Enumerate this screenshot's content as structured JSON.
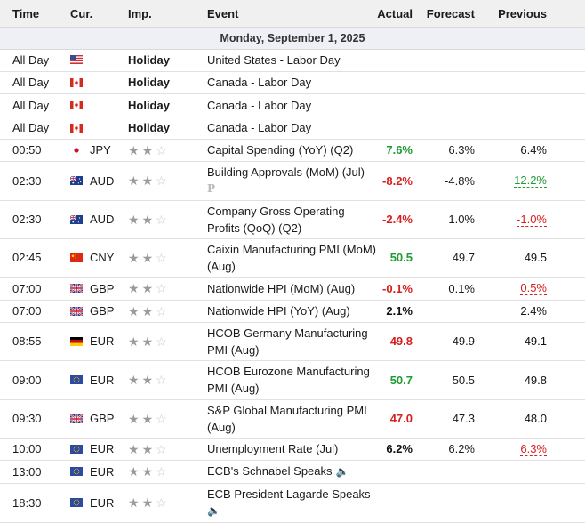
{
  "header": {
    "time": "Time",
    "currency": "Cur.",
    "importance": "Imp.",
    "event": "Event",
    "actual": "Actual",
    "forecast": "Forecast",
    "previous": "Previous"
  },
  "date_label": "Monday, September 1, 2025",
  "colors": {
    "positive": "#1f9c34",
    "negative": "#d62020",
    "header_bg": "#f0f0f0"
  },
  "rows": [
    {
      "time": "All Day",
      "flag": "us-flag",
      "currency": "",
      "holiday": "Holiday",
      "event": "United States - Labor Day"
    },
    {
      "time": "All Day",
      "flag": "ca-flag",
      "currency": "",
      "holiday": "Holiday",
      "event": "Canada - Labor Day"
    },
    {
      "time": "All Day",
      "flag": "ca-flag",
      "currency": "",
      "holiday": "Holiday",
      "event": "Canada - Labor Day"
    },
    {
      "time": "All Day",
      "flag": "ca-flag",
      "currency": "",
      "holiday": "Holiday",
      "event": "Canada - Labor Day"
    },
    {
      "time": "00:50",
      "flag": "jp-flag",
      "currency": "JPY",
      "stars": 2,
      "event": "Capital Spending (YoY) (Q2)",
      "actual": "7.6%",
      "actual_color": "green",
      "forecast": "6.3%",
      "previous": "6.4%",
      "previous_color": "black"
    },
    {
      "time": "02:30",
      "flag": "au-flag",
      "currency": "AUD",
      "stars": 2,
      "event": "Building Approvals (MoM) (Jul)",
      "event_icon": "P",
      "actual": "-8.2%",
      "actual_color": "red",
      "forecast": "-4.8%",
      "previous": "12.2%",
      "previous_color": "green",
      "previous_revised": true
    },
    {
      "time": "02:30",
      "flag": "au-flag",
      "currency": "AUD",
      "stars": 2,
      "event": "Company Gross Operating Profits (QoQ) (Q2)",
      "actual": "-2.4%",
      "actual_color": "red",
      "forecast": "1.0%",
      "previous": "-1.0%",
      "previous_color": "red",
      "previous_revised": true
    },
    {
      "time": "02:45",
      "flag": "cn-flag",
      "currency": "CNY",
      "stars": 2,
      "event": "Caixin Manufacturing PMI (MoM) (Aug)",
      "actual": "50.5",
      "actual_color": "green",
      "forecast": "49.7",
      "previous": "49.5",
      "previous_color": "black"
    },
    {
      "time": "07:00",
      "flag": "gb-flag",
      "currency": "GBP",
      "stars": 2,
      "event": "Nationwide HPI (MoM) (Aug)",
      "actual": "-0.1%",
      "actual_color": "red",
      "forecast": "0.1%",
      "previous": "0.5%",
      "previous_color": "red",
      "previous_revised": true
    },
    {
      "time": "07:00",
      "flag": "gb-flag",
      "currency": "GBP",
      "stars": 2,
      "event": "Nationwide HPI (YoY) (Aug)",
      "actual": "2.1%",
      "actual_color": "black",
      "forecast": "",
      "previous": "2.4%",
      "previous_color": "black"
    },
    {
      "time": "08:55",
      "flag": "de-flag",
      "currency": "EUR",
      "stars": 2,
      "event": "HCOB Germany Manufacturing PMI (Aug)",
      "actual": "49.8",
      "actual_color": "red",
      "forecast": "49.9",
      "previous": "49.1",
      "previous_color": "black"
    },
    {
      "time": "09:00",
      "flag": "eu-flag",
      "currency": "EUR",
      "stars": 2,
      "event": "HCOB Eurozone Manufacturing PMI (Aug)",
      "actual": "50.7",
      "actual_color": "green",
      "forecast": "50.5",
      "previous": "49.8",
      "previous_color": "black"
    },
    {
      "time": "09:30",
      "flag": "gb-flag",
      "currency": "GBP",
      "stars": 2,
      "event": "S&P Global Manufacturing PMI (Aug)",
      "actual": "47.0",
      "actual_color": "red",
      "forecast": "47.3",
      "previous": "48.0",
      "previous_color": "black"
    },
    {
      "time": "10:00",
      "flag": "eu-flag",
      "currency": "EUR",
      "stars": 2,
      "event": "Unemployment Rate (Jul)",
      "actual": "6.2%",
      "actual_color": "black",
      "forecast": "6.2%",
      "previous": "6.3%",
      "previous_color": "red",
      "previous_revised": true
    },
    {
      "time": "13:00",
      "flag": "eu-flag",
      "currency": "EUR",
      "stars": 2,
      "event": "ECB's Schnabel Speaks",
      "speech": true
    },
    {
      "time": "18:30",
      "flag": "eu-flag",
      "currency": "EUR",
      "stars": 2,
      "event": "ECB President Lagarde Speaks",
      "speech": true
    }
  ]
}
